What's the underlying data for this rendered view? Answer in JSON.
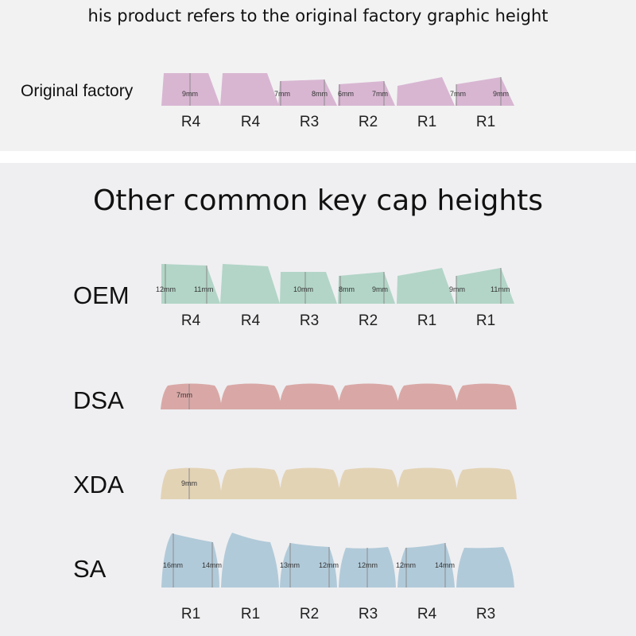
{
  "header": {
    "title": "his product refers to the original factory graphic height"
  },
  "original": {
    "label": "Original factory",
    "color": "#d8b6d2",
    "rows": [
      "R4",
      "R4",
      "R3",
      "R2",
      "R1",
      "R1"
    ],
    "measures": [
      "9mm",
      "7mm",
      "8mm",
      "6mm",
      "7mm",
      "7mm",
      "9mm"
    ]
  },
  "section_title": "Other common key cap heights",
  "oem": {
    "label": "OEM",
    "color": "#b2d5c7",
    "rows": [
      "R4",
      "R4",
      "R3",
      "R2",
      "R1",
      "R1"
    ],
    "measures": [
      "12mm",
      "11mm",
      "10mm",
      "8mm",
      "9mm",
      "9mm",
      "11mm"
    ]
  },
  "dsa": {
    "label": "DSA",
    "color": "#d9a8a6",
    "measures": [
      "7mm"
    ]
  },
  "xda": {
    "label": "XDA",
    "color": "#e3d3b5",
    "measures": [
      "9mm"
    ]
  },
  "sa": {
    "label": "SA",
    "color": "#b1cad9",
    "rows": [
      "R1",
      "R1",
      "R2",
      "R3",
      "R4",
      "R3"
    ],
    "measures": [
      "16mm",
      "14mm",
      "13mm",
      "12mm",
      "12mm",
      "12mm",
      "14mm"
    ]
  }
}
